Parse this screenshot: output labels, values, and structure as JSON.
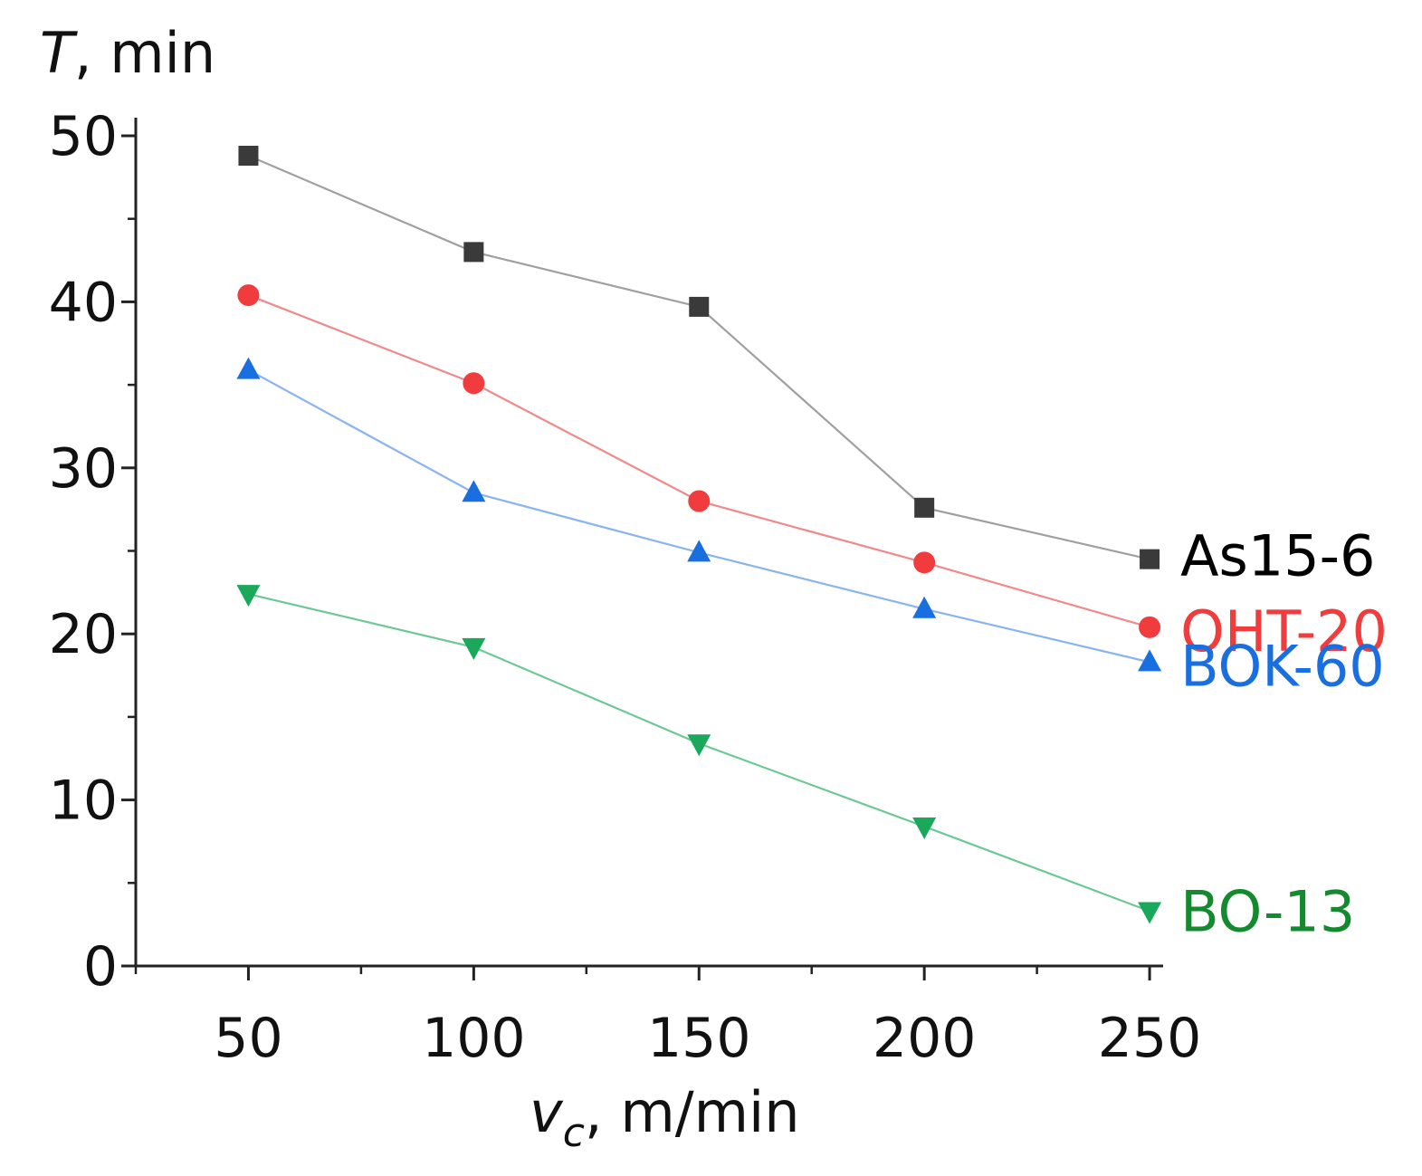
{
  "chart_data": {
    "type": "line",
    "title": "",
    "ylabel": {
      "symbol": "T",
      "unit": ", min"
    },
    "xlabel": {
      "symbol": "v",
      "subscript": "c",
      "unit": ", m/min"
    },
    "x": [
      50,
      100,
      150,
      200,
      250
    ],
    "xlim": [
      25,
      253
    ],
    "ylim": [
      0,
      50
    ],
    "xticks": [
      50,
      100,
      150,
      200,
      250
    ],
    "yticks": [
      0,
      10,
      20,
      30,
      40,
      50
    ],
    "grid": false,
    "legend": "inline-right",
    "series": [
      {
        "name": "As15-6",
        "color": "#3a3a3a",
        "line_color": "#a0a0a0",
        "label_color": "#000000",
        "marker": "square",
        "values": [
          48.8,
          43.0,
          39.7,
          27.6,
          24.5
        ]
      },
      {
        "name": "OHT-20",
        "color": "#f03c3c",
        "line_color": "#f08a8a",
        "label_color": "#f03c3c",
        "marker": "circle",
        "values": [
          40.4,
          35.1,
          28.0,
          24.3,
          20.4
        ]
      },
      {
        "name": "BOK-60",
        "color": "#1a6fe0",
        "line_color": "#8ab4f0",
        "label_color": "#1a6fe0",
        "marker": "triangle-up",
        "values": [
          35.9,
          28.5,
          24.9,
          21.5,
          18.3
        ]
      },
      {
        "name": "BO-13",
        "color": "#1aa85a",
        "line_color": "#6cc896",
        "label_color": "#148a2e",
        "marker": "triangle-down",
        "values": [
          22.4,
          19.2,
          13.4,
          8.4,
          3.3
        ]
      }
    ]
  }
}
